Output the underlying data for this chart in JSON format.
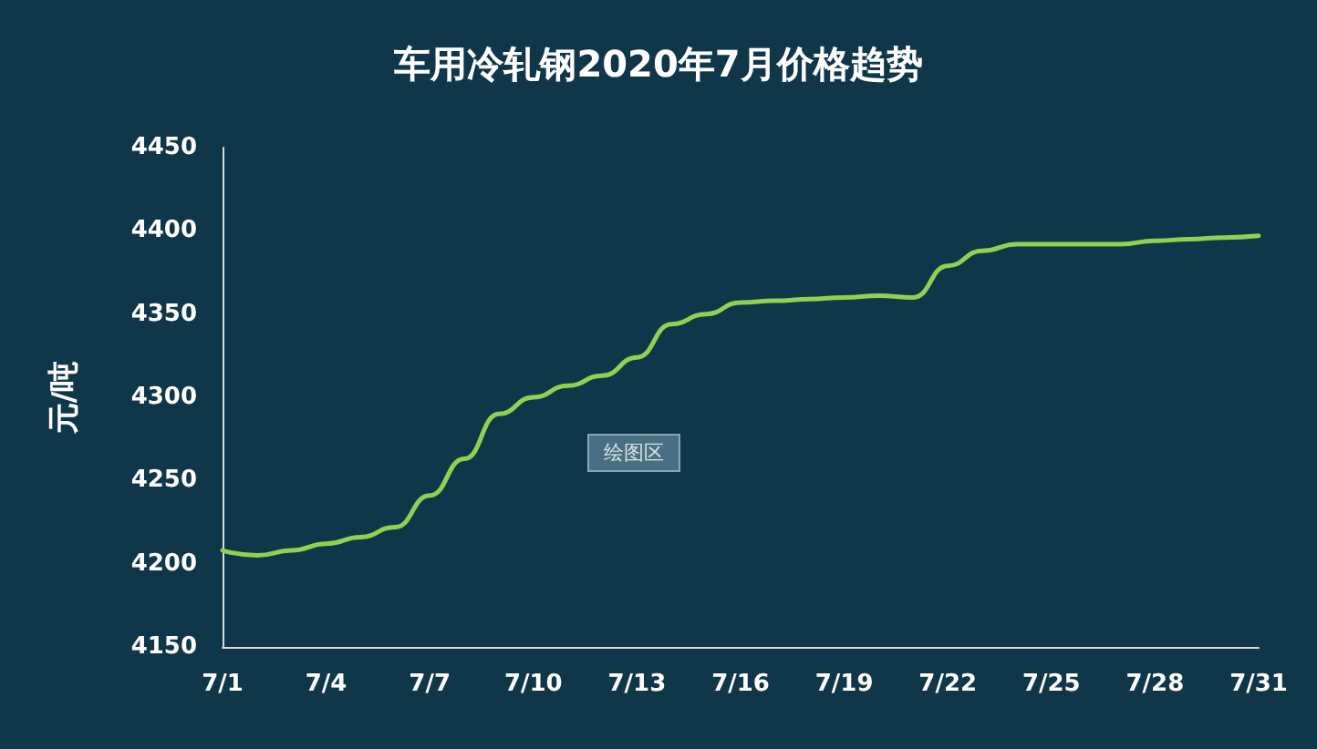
{
  "chart_data": {
    "type": "line",
    "title": "车用冷轧钢2020年7月价格趋势",
    "ylabel": "元/吨",
    "categories": [
      "7/1",
      null,
      null,
      "7/4",
      null,
      null,
      "7/7",
      null,
      null,
      "7/10",
      null,
      null,
      "7/13",
      null,
      null,
      "7/16",
      null,
      null,
      "7/19",
      null,
      null,
      "7/22",
      null,
      null,
      "7/25",
      null,
      null,
      "7/28",
      null,
      null,
      "7/31"
    ],
    "series": [
      {
        "color": "#92d050",
        "values": [
          4208,
          4205,
          4208,
          4212,
          4216,
          4222,
          4241,
          4263,
          4290,
          4300,
          4307,
          4313,
          4324,
          4344,
          4350,
          4357,
          4358,
          4359,
          4360,
          4361,
          4360,
          4379,
          4388,
          4392,
          4392,
          4392,
          4392,
          4394,
          4395,
          4396,
          4397
        ]
      }
    ],
    "ylim": [
      4150,
      4450
    ],
    "yticks": [
      4150,
      4200,
      4250,
      4300,
      4350,
      4400,
      4450
    ],
    "grid": false,
    "marker": "none",
    "line_style": "solid",
    "annotations": [
      "绘图区"
    ]
  }
}
